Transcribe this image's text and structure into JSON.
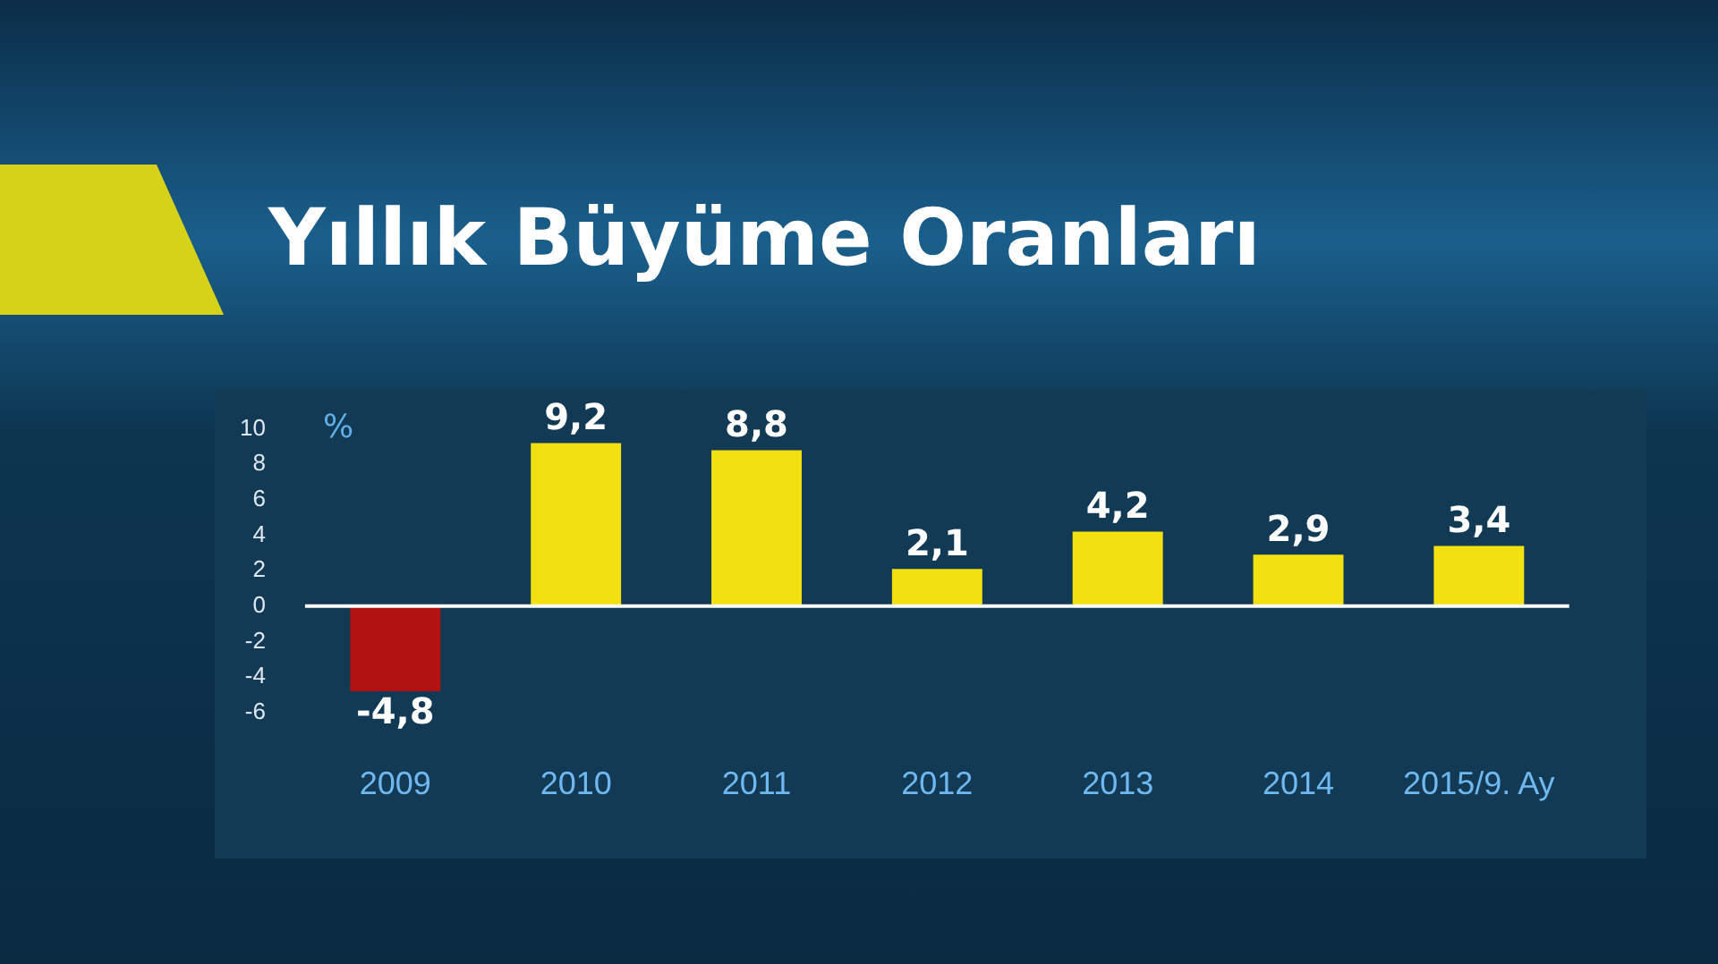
{
  "chart_data": {
    "type": "bar",
    "title": "Yıllık Büyüme Oranları",
    "ylabel": "%",
    "categories": [
      "2009",
      "2010",
      "2011",
      "2012",
      "2013",
      "2014",
      "2015/9. Ay"
    ],
    "values": [
      -4.8,
      9.2,
      8.8,
      2.1,
      4.2,
      2.9,
      3.4
    ],
    "colors": [
      "#b31212",
      "#f2e010",
      "#f2e010",
      "#f2e010",
      "#f2e010",
      "#f2e010",
      "#f2e010"
    ],
    "value_labels": [
      "-4,8",
      "9,2",
      "8,8",
      "2,1",
      "4,2",
      "2,9",
      "3,4"
    ],
    "ylim": [
      -6,
      10
    ],
    "yticks": [
      -6,
      -4,
      -2,
      0,
      2,
      4,
      6,
      8,
      10
    ],
    "ref_lines": [
      {
        "axis": "y",
        "value": 0,
        "color": "#ffffff"
      }
    ]
  }
}
